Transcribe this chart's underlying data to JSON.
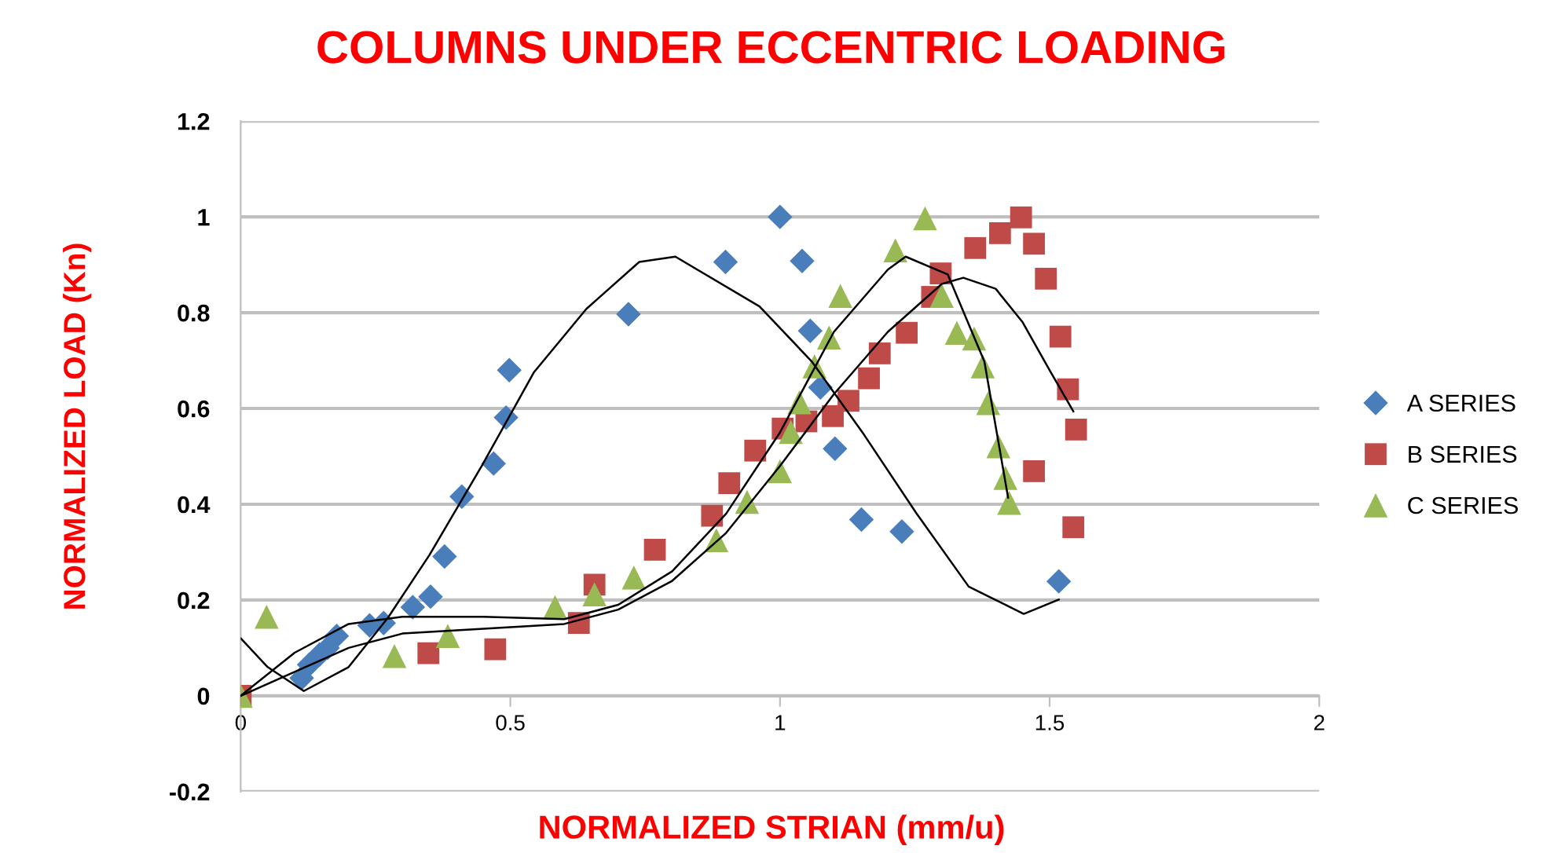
{
  "chart_data": {
    "type": "scatter",
    "title": "COLUMNS UNDER ECCENTRIC LOADING",
    "xlabel": "NORMALIZED STRIAN (mm/u)",
    "ylabel": "NORMALIZED LOAD (Kn)",
    "xlim": [
      0,
      2
    ],
    "xticks": [
      0,
      0.5,
      1,
      1.5,
      2
    ],
    "ylim": [
      -0.2,
      1.2
    ],
    "yticks": [
      -0.2,
      0,
      0.2,
      0.4,
      0.6,
      0.8,
      1,
      1.2
    ],
    "grid": "y",
    "legend": "right",
    "series": [
      {
        "name": "A SERIES",
        "color": "#4a7ebb",
        "marker": "diamond",
        "x": [
          0.113,
          0.127,
          0.146,
          0.161,
          0.178,
          0.239,
          0.265,
          0.319,
          0.352,
          0.378,
          0.41,
          0.469,
          0.492,
          0.498,
          0.719,
          0.899,
          1.0,
          1.041,
          1.056,
          1.075,
          1.102,
          1.151,
          1.226,
          1.517
        ],
        "values": [
          0.037,
          0.065,
          0.086,
          0.1,
          0.125,
          0.147,
          0.152,
          0.185,
          0.207,
          0.291,
          0.416,
          0.485,
          0.581,
          0.68,
          0.797,
          0.906,
          1.0,
          0.908,
          0.762,
          0.644,
          0.516,
          0.368,
          0.343,
          0.239
        ]
      },
      {
        "name": "B SERIES",
        "color": "#be4b48",
        "marker": "square",
        "x": [
          0,
          0.348,
          0.472,
          0.627,
          0.656,
          0.768,
          0.874,
          0.906,
          0.954,
          1.005,
          1.049,
          1.098,
          1.127,
          1.165,
          1.185,
          1.235,
          1.282,
          1.298,
          1.362,
          1.408,
          1.447,
          1.471,
          1.493,
          1.52,
          1.534,
          1.549,
          1.471,
          1.544
        ],
        "values": [
          0,
          0.089,
          0.097,
          0.152,
          0.232,
          0.305,
          0.376,
          0.444,
          0.512,
          0.558,
          0.573,
          0.584,
          0.616,
          0.663,
          0.715,
          0.758,
          0.833,
          0.882,
          0.935,
          0.966,
          0.999,
          0.944,
          0.871,
          0.75,
          0.64,
          0.556,
          0.469,
          0.352
        ]
      },
      {
        "name": "C SERIES",
        "color": "#98b954",
        "marker": "triangle",
        "x": [
          0,
          0.048,
          0.285,
          0.384,
          0.583,
          0.656,
          0.729,
          0.882,
          0.939,
          1.0,
          1.02,
          1.036,
          1.064,
          1.091,
          1.112,
          1.214,
          1.269,
          1.3,
          1.328,
          1.36,
          1.376,
          1.386,
          1.405,
          1.418,
          1.425
        ],
        "values": [
          0,
          0.165,
          0.083,
          0.125,
          0.185,
          0.212,
          0.247,
          0.325,
          0.405,
          0.469,
          0.551,
          0.613,
          0.688,
          0.748,
          0.835,
          0.93,
          0.997,
          0.835,
          0.758,
          0.746,
          0.688,
          0.611,
          0.521,
          0.455,
          0.403
        ]
      },
      {
        "type": "line",
        "color": "#000000",
        "marker": "none",
        "x": [
          0,
          0.05,
          0.117,
          0.2,
          0.273,
          0.35,
          0.447,
          0.544,
          0.641,
          0.739,
          0.806,
          0.962,
          1.059,
          1.156,
          1.253,
          1.35,
          1.452,
          1.517
        ],
        "values": [
          0.12,
          0.06,
          0.01,
          0.06,
          0.163,
          0.294,
          0.48,
          0.676,
          0.808,
          0.906,
          0.917,
          0.813,
          0.698,
          0.545,
          0.381,
          0.228,
          0.171,
          0.201
        ]
      },
      {
        "type": "line",
        "color": "#000000",
        "marker": "none",
        "x": [
          0,
          0.1,
          0.2,
          0.3,
          0.45,
          0.6,
          0.7,
          0.8,
          0.9,
          1.0,
          1.1,
          1.2,
          1.3,
          1.34,
          1.4,
          1.45,
          1.5,
          1.544
        ],
        "values": [
          0,
          0.05,
          0.1,
          0.13,
          0.14,
          0.15,
          0.18,
          0.24,
          0.34,
          0.48,
          0.63,
          0.76,
          0.86,
          0.873,
          0.85,
          0.78,
          0.68,
          0.594
        ]
      },
      {
        "type": "line",
        "color": "#000000",
        "marker": "none",
        "x": [
          0,
          0.1,
          0.2,
          0.3,
          0.45,
          0.6,
          0.7,
          0.8,
          0.9,
          1.0,
          1.1,
          1.2,
          1.233,
          1.311,
          1.379,
          1.423
        ],
        "values": [
          0,
          0.09,
          0.15,
          0.165,
          0.165,
          0.16,
          0.19,
          0.26,
          0.38,
          0.55,
          0.76,
          0.89,
          0.917,
          0.88,
          0.698,
          0.414
        ]
      }
    ]
  }
}
